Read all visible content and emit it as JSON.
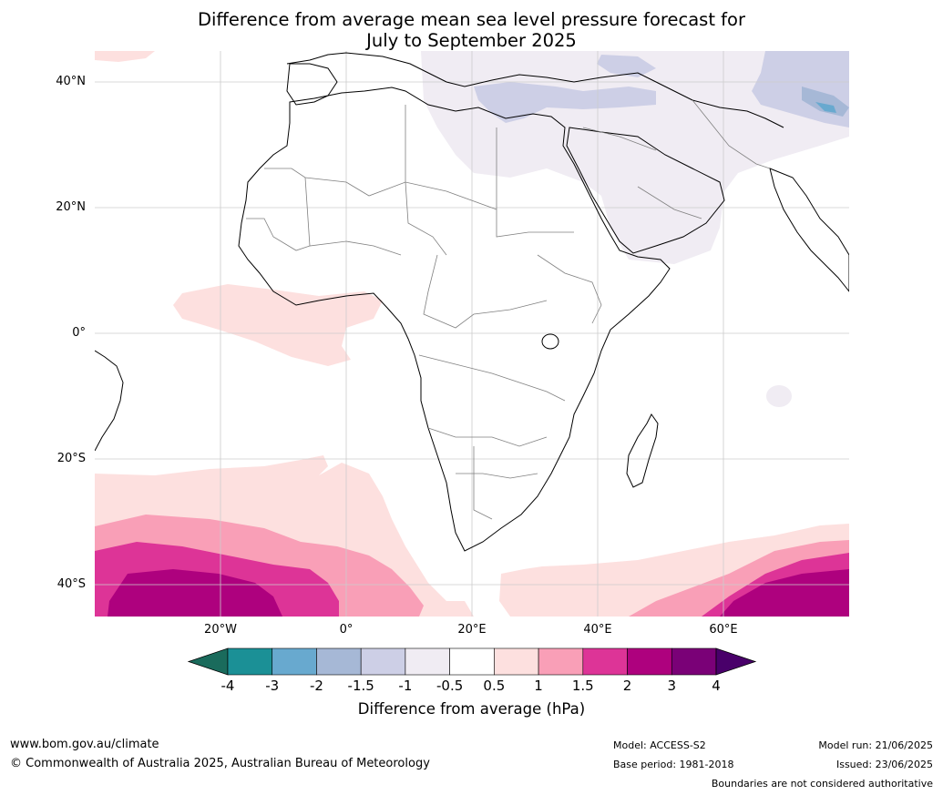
{
  "title": {
    "line1": "Difference from average mean sea level pressure forecast for",
    "line2": "July to September 2025"
  },
  "map": {
    "lat_labels": [
      "40°N",
      "20°N",
      "0°",
      "20°S",
      "40°S"
    ],
    "lon_labels": [
      "20°W",
      "0°",
      "20°E",
      "40°E",
      "60°E"
    ],
    "grid_lines": true
  },
  "colorbar": {
    "ticks": [
      "-4",
      "-3",
      "-2",
      "-1.5",
      "-1",
      "-0.5",
      "0.5",
      "1",
      "1.5",
      "2",
      "3",
      "4"
    ],
    "colors": [
      "#1a6b5c",
      "#1b9096",
      "#68a9cf",
      "#a6b8d6",
      "#cdcfe6",
      "#f0ecf3",
      "#ffffff",
      "#fde0df",
      "#f99fb7",
      "#dd3497",
      "#ae017e",
      "#7a0177",
      "#49006a"
    ],
    "label": "Difference from average (hPa)"
  },
  "footer": {
    "website": "www.bom.gov.au/climate",
    "copyright": "© Commonwealth of Australia 2025, Australian Bureau of Meteorology",
    "model": "Model: ACCESS-S2",
    "base_period": "Base period: 1981-2018",
    "model_run": "Model run: 21/06/2025",
    "issued": "Issued: 23/06/2025",
    "disclaimer": "Boundaries are not considered authoritative"
  }
}
